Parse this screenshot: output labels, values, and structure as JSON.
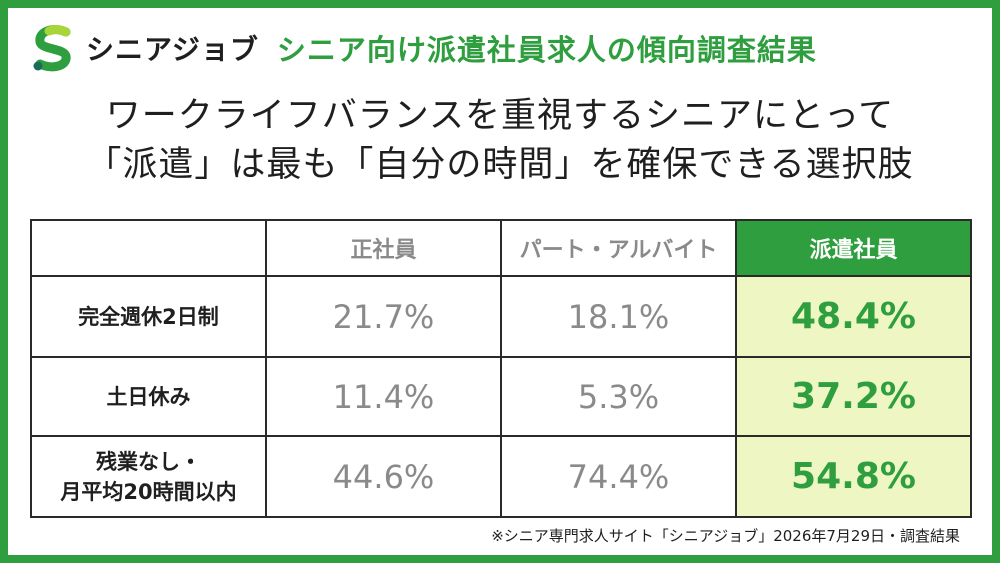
{
  "header": {
    "brand": "シニアジョブ",
    "subtitle": "シニア向け派遣社員求人の傾向調査結果",
    "logo_colors": [
      "#2e9e3e",
      "#a8d63a",
      "#1c6b5a"
    ]
  },
  "headline": {
    "line1": "ワークライフバランスを重視するシニアにとって",
    "line2": "「派遣」は最も「自分の時間」を確保できる選択肢"
  },
  "chart_data": {
    "type": "table",
    "columns": [
      "",
      "正社員",
      "パート・アルバイト",
      "派遣社員"
    ],
    "highlight_column": "派遣社員",
    "rows": [
      {
        "label_lines": [
          "完全週休2日制"
        ],
        "values": [
          "21.7%",
          "18.1%",
          "48.4%"
        ]
      },
      {
        "label_lines": [
          "土日休み"
        ],
        "values": [
          "11.4%",
          "5.3%",
          "37.2%"
        ]
      },
      {
        "label_lines": [
          "残業なし・",
          "月平均20時間以内"
        ],
        "values": [
          "44.6%",
          "74.4%",
          "54.8%"
        ]
      }
    ]
  },
  "footnote": "※シニア専門求人サイト「シニアジョブ」2026年7月29日・調査結果",
  "colors": {
    "brand_green": "#2e9e3e",
    "highlight_bg": "#eef7c3",
    "muted_text": "#8a8a8a"
  }
}
